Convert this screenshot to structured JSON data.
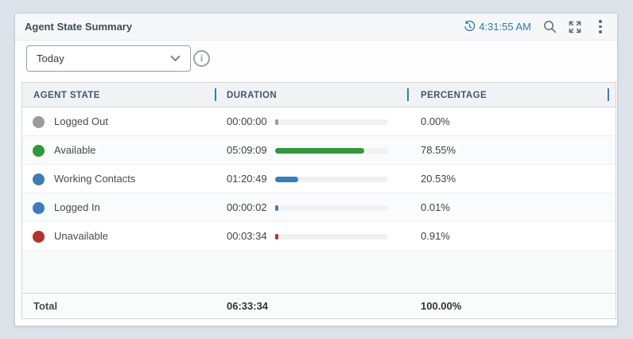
{
  "widget": {
    "title": "Agent State Summary",
    "timestamp": "4:31:55 AM",
    "header_icons": [
      {
        "name": "refresh-time-icon"
      },
      {
        "name": "search-icon"
      },
      {
        "name": "expand-icon"
      },
      {
        "name": "kebab-menu-icon"
      }
    ],
    "filter": {
      "selected": "Today",
      "chevron_icon": "chevron-down-icon",
      "info_icon": "info-icon",
      "info_glyph": "i"
    },
    "colors": {
      "accent_blue": "#2e7fb9",
      "timestamp_blue": "#2d7cb5",
      "bar_track": "#f1f1ef"
    }
  },
  "chart_data": {
    "type": "table",
    "title": "Agent State Summary",
    "columns": [
      "AGENT STATE",
      "DURATION",
      "PERCENTAGE"
    ],
    "rows": [
      {
        "state": "Logged Out",
        "color": "#9b9b9b",
        "duration": "00:00:00",
        "percentage": "0.00%",
        "percent_value": 0.0
      },
      {
        "state": "Available",
        "color": "#2e9a39",
        "duration": "05:09:09",
        "percentage": "78.55%",
        "percent_value": 78.55
      },
      {
        "state": "Working Contacts",
        "color": "#3c7cb8",
        "duration": "01:20:49",
        "percentage": "20.53%",
        "percent_value": 20.53
      },
      {
        "state": "Logged In",
        "color": "#3c7cb8",
        "duration": "00:00:02",
        "percentage": "0.01%",
        "percent_value": 0.01
      },
      {
        "state": "Unavailable",
        "color": "#b5312c",
        "duration": "00:03:34",
        "percentage": "0.91%",
        "percent_value": 0.91
      }
    ],
    "total": {
      "label": "Total",
      "duration": "06:33:34",
      "percentage": "100.00%"
    }
  }
}
